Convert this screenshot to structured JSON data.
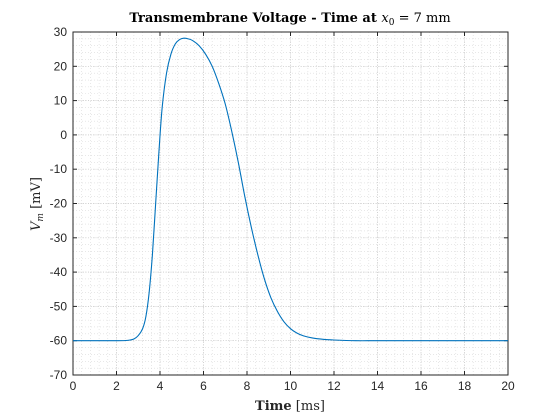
{
  "chart_data": {
    "type": "line",
    "title": {
      "bold": "Transmembrane Voltage - Time at ",
      "var": "x",
      "sub": "0",
      "rest": " = 7 mm"
    },
    "xlabel": {
      "bold": "Time",
      "rest": " [ms]"
    },
    "ylabel": {
      "var": "V",
      "sub": "m",
      "rest": " [mV]"
    },
    "xlim": [
      0,
      20
    ],
    "ylim": [
      -70,
      30
    ],
    "xticks": [
      0,
      2,
      4,
      6,
      8,
      10,
      12,
      14,
      16,
      18,
      20
    ],
    "yticks": [
      30,
      20,
      10,
      0,
      -10,
      -20,
      -30,
      -40,
      -50,
      -60,
      -70
    ],
    "grid": "major and minor (dotted)",
    "line_color": "#0072BD",
    "series": [
      {
        "x": [
          0,
          1,
          2,
          2.5,
          2.8,
          3.0,
          3.2,
          3.35,
          3.5,
          3.65,
          3.8,
          3.95,
          4.1,
          4.3,
          4.5,
          4.7,
          4.9,
          5.1,
          5.3,
          5.5,
          5.8,
          6.1,
          6.4,
          6.7,
          7.0,
          7.3,
          7.6,
          7.9,
          8.2,
          8.5,
          8.8,
          9.1,
          9.4,
          9.7,
          10.0,
          10.3,
          10.6,
          11.0,
          11.5,
          12.0,
          13.0,
          14.0,
          16.0,
          18.0,
          20.0
        ],
        "y": [
          -60,
          -60,
          -60,
          -59.9,
          -59.5,
          -58.5,
          -56.5,
          -53.0,
          -46.0,
          -35.0,
          -20.0,
          -5.0,
          8.0,
          18.0,
          23.5,
          26.5,
          27.8,
          28.2,
          28.0,
          27.5,
          26.0,
          23.5,
          20.0,
          15.0,
          9.0,
          1.0,
          -8.0,
          -18.0,
          -27.0,
          -35.0,
          -42.0,
          -47.5,
          -51.5,
          -54.5,
          -56.5,
          -57.8,
          -58.6,
          -59.2,
          -59.6,
          -59.8,
          -60,
          -60,
          -60,
          -60,
          -60
        ]
      }
    ]
  }
}
